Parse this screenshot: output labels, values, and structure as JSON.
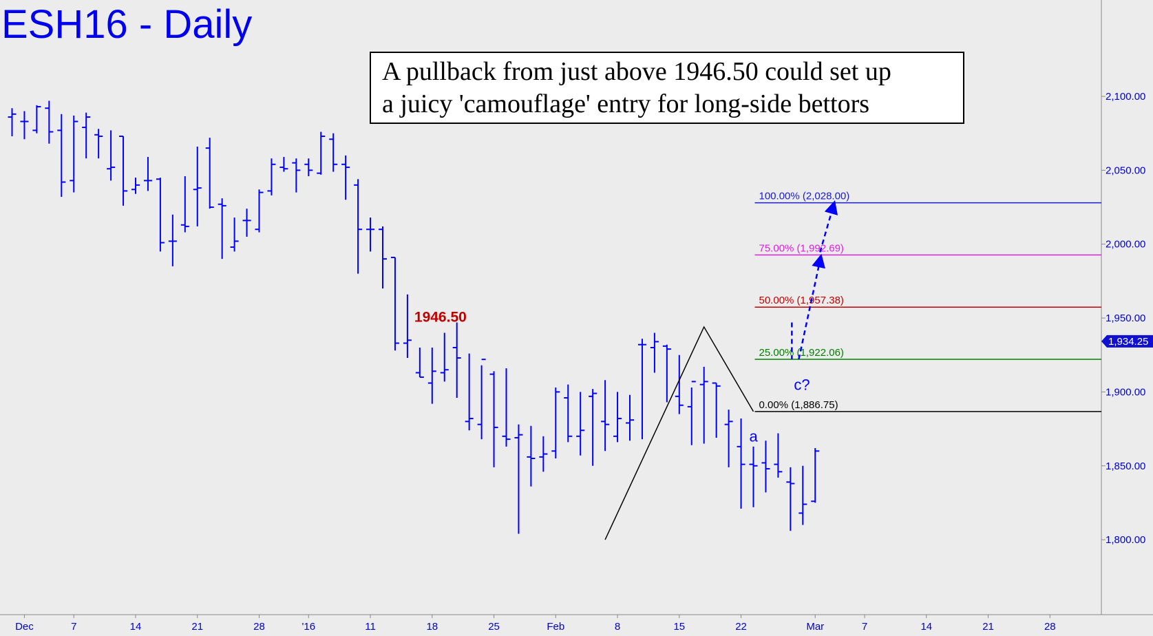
{
  "chart_data": {
    "type": "bar",
    "subtype": "ohlc",
    "title": "ESH16 - Daily",
    "ylim": [
      1755,
      2165
    ],
    "yticks": [
      1800,
      1850,
      1900,
      1950,
      2000,
      2050,
      2100
    ],
    "ytick_labels": [
      "1,800.00",
      "1,850.00",
      "1,900.00",
      "1,950.00",
      "2,000.00",
      "2,050.00",
      "2,100.00"
    ],
    "x_labels": [
      {
        "label": "Dec",
        "day": 1
      },
      {
        "label": "7",
        "day": 5
      },
      {
        "label": "14",
        "day": 10
      },
      {
        "label": "21",
        "day": 15
      },
      {
        "label": "28",
        "day": 20
      },
      {
        "label": "'16",
        "day": 24
      },
      {
        "label": "11",
        "day": 29
      },
      {
        "label": "18",
        "day": 34
      },
      {
        "label": "25",
        "day": 39
      },
      {
        "label": "Feb",
        "day": 44
      },
      {
        "label": "8",
        "day": 49
      },
      {
        "label": "15",
        "day": 54
      },
      {
        "label": "22",
        "day": 59
      },
      {
        "label": "Mar",
        "day": 65
      },
      {
        "label": "7",
        "day": 69
      },
      {
        "label": "14",
        "day": 74
      },
      {
        "label": "21",
        "day": 79
      },
      {
        "label": "28",
        "day": 84
      }
    ],
    "last_price": 1934.25,
    "last_price_label": "1,934.25",
    "bars": [
      {
        "day": 0,
        "o": 2086,
        "h": 2092,
        "l": 2073,
        "c": 2088
      },
      {
        "day": 1,
        "o": 2083,
        "h": 2090,
        "l": 2071,
        "c": 2083
      },
      {
        "day": 2,
        "o": 2077,
        "h": 2094,
        "l": 2075,
        "c": 2093
      },
      {
        "day": 3,
        "o": 2092,
        "h": 2097,
        "l": 2068,
        "c": 2076
      },
      {
        "day": 4,
        "o": 2077,
        "h": 2088,
        "l": 2032,
        "c": 2042
      },
      {
        "day": 5,
        "o": 2043,
        "h": 2087,
        "l": 2035,
        "c": 2083
      },
      {
        "day": 6,
        "o": 2079,
        "h": 2089,
        "l": 2058,
        "c": 2086
      },
      {
        "day": 7,
        "o": 2074,
        "h": 2078,
        "l": 2058,
        "c": 2073
      },
      {
        "day": 8,
        "o": 2051,
        "h": 2077,
        "l": 2043,
        "c": 2052
      },
      {
        "day": 9,
        "o": 2073,
        "h": 2073,
        "l": 2026,
        "c": 2036
      },
      {
        "day": 10,
        "o": 2037,
        "h": 2045,
        "l": 2034,
        "c": 2040
      },
      {
        "day": 11,
        "o": 2043,
        "h": 2059,
        "l": 2036,
        "c": 2043
      },
      {
        "day": 12,
        "o": 2044,
        "h": 2045,
        "l": 1995,
        "c": 2001
      },
      {
        "day": 13,
        "o": 2002,
        "h": 2020,
        "l": 1985,
        "c": 2002
      },
      {
        "day": 14,
        "o": 2013,
        "h": 2046,
        "l": 2008,
        "c": 2012
      },
      {
        "day": 15,
        "o": 2037,
        "h": 2066,
        "l": 2012,
        "c": 2038
      },
      {
        "day": 16,
        "o": 2065,
        "h": 2072,
        "l": 2024,
        "c": 2025
      },
      {
        "day": 17,
        "o": 2027,
        "h": 2031,
        "l": 1990,
        "c": 2026
      },
      {
        "day": 18,
        "o": 1998,
        "h": 2018,
        "l": 1995,
        "c": 2002
      },
      {
        "day": 19,
        "o": 2016,
        "h": 2024,
        "l": 2005,
        "c": 2016
      },
      {
        "day": 20,
        "o": 2010,
        "h": 2037,
        "l": 2008,
        "c": 2035
      },
      {
        "day": 21,
        "o": 2036,
        "h": 2058,
        "l": 2033,
        "c": 2054
      },
      {
        "day": 22,
        "o": 2052,
        "h": 2059,
        "l": 2049,
        "c": 2051
      },
      {
        "day": 23,
        "o": 2055,
        "h": 2058,
        "l": 2035,
        "c": 2050
      },
      {
        "day": 24,
        "o": 2054,
        "h": 2058,
        "l": 2046,
        "c": 2050
      },
      {
        "day": 25,
        "o": 2048,
        "h": 2076,
        "l": 2047,
        "c": 2073
      },
      {
        "day": 26,
        "o": 2071,
        "h": 2075,
        "l": 2049,
        "c": 2054
      },
      {
        "day": 27,
        "o": 2054,
        "h": 2060,
        "l": 2030,
        "c": 2052
      },
      {
        "day": 28,
        "o": 2040,
        "h": 2044,
        "l": 1980,
        "c": 2010
      },
      {
        "day": 29,
        "o": 2010,
        "h": 2018,
        "l": 1995,
        "c": 2010
      },
      {
        "day": 30,
        "o": 2010,
        "h": 2012,
        "l": 1970,
        "c": 1990
      },
      {
        "day": 31,
        "o": 1991,
        "h": 1991,
        "l": 1928,
        "c": 1933
      },
      {
        "day": 32,
        "o": 1933,
        "h": 1966,
        "l": 1923,
        "c": 1935
      },
      {
        "day": 33,
        "o": 1913,
        "h": 1930,
        "l": 1910,
        "c": 1910
      },
      {
        "day": 34,
        "o": 1906,
        "h": 1930,
        "l": 1892,
        "c": 1914
      },
      {
        "day": 35,
        "o": 1913,
        "h": 1940,
        "l": 1907,
        "c": 1915
      },
      {
        "day": 36,
        "o": 1930,
        "h": 1947,
        "l": 1896,
        "c": 1923
      },
      {
        "day": 37,
        "o": 1880,
        "h": 1926,
        "l": 1874,
        "c": 1882
      },
      {
        "day": 38,
        "o": 1878,
        "h": 1918,
        "l": 1868,
        "c": 1922
      },
      {
        "day": 39,
        "o": 1912,
        "h": 1914,
        "l": 1849,
        "c": 1876
      },
      {
        "day": 40,
        "o": 1870,
        "h": 1916,
        "l": 1863,
        "c": 1868
      },
      {
        "day": 41,
        "o": 1869,
        "h": 1878,
        "l": 1804,
        "c": 1871
      },
      {
        "day": 42,
        "o": 1856,
        "h": 1877,
        "l": 1836,
        "c": 1855
      },
      {
        "day": 43,
        "o": 1856,
        "h": 1870,
        "l": 1846,
        "c": 1858
      },
      {
        "day": 44,
        "o": 1860,
        "h": 1903,
        "l": 1855,
        "c": 1900
      },
      {
        "day": 45,
        "o": 1896,
        "h": 1905,
        "l": 1866,
        "c": 1870
      },
      {
        "day": 46,
        "o": 1870,
        "h": 1900,
        "l": 1857,
        "c": 1874
      },
      {
        "day": 47,
        "o": 1897,
        "h": 1902,
        "l": 1850,
        "c": 1899
      },
      {
        "day": 48,
        "o": 1880,
        "h": 1908,
        "l": 1860,
        "c": 1878
      },
      {
        "day": 49,
        "o": 1870,
        "h": 1900,
        "l": 1866,
        "c": 1882
      },
      {
        "day": 50,
        "o": 1879,
        "h": 1898,
        "l": 1867,
        "c": 1881
      },
      {
        "day": 51,
        "o": 1932,
        "h": 1936,
        "l": 1868,
        "c": 1932
      },
      {
        "day": 52,
        "o": 1930,
        "h": 1940,
        "l": 1913,
        "c": 1934
      },
      {
        "day": 53,
        "o": 1931,
        "h": 1932,
        "l": 1893,
        "c": 1929
      },
      {
        "day": 54,
        "o": 1897,
        "h": 1925,
        "l": 1885,
        "c": 1891
      },
      {
        "day": 55,
        "o": 1890,
        "h": 1903,
        "l": 1864,
        "c": 1907
      },
      {
        "day": 56,
        "o": 1905,
        "h": 1917,
        "l": 1865,
        "c": 1907
      },
      {
        "day": 57,
        "o": 1906,
        "h": 1906,
        "l": 1869,
        "c": 1904
      },
      {
        "day": 58,
        "o": 1878,
        "h": 1888,
        "l": 1849,
        "c": 1880
      },
      {
        "day": 59,
        "o": 1863,
        "h": 1882,
        "l": 1821,
        "c": 1851
      },
      {
        "day": 60,
        "o": 1851,
        "h": 1863,
        "l": 1822,
        "c": 1850
      },
      {
        "day": 61,
        "o": 1852,
        "h": 1867,
        "l": 1832,
        "c": 1848
      },
      {
        "day": 62,
        "o": 1851,
        "h": 1872,
        "l": 1842,
        "c": 1846
      },
      {
        "day": 63,
        "o": 1839,
        "h": 1849,
        "l": 1806,
        "c": 1838
      },
      {
        "day": 64,
        "o": 1818,
        "h": 1850,
        "l": 1810,
        "c": 1824
      },
      {
        "day": 65,
        "o": 1826,
        "h": 1862,
        "l": 1825,
        "c": 1860
      }
    ]
  },
  "annotation": {
    "line1": "A pullback from just above 1946.50 could set up",
    "line2": "a juicy 'camouflage' entry for long-side bettors"
  },
  "key_level": {
    "value": 1946.5,
    "label": "1946.50",
    "color": "#c00000"
  },
  "fib_levels": [
    {
      "pct": "100.00%",
      "value": 2028.0,
      "label": "100.00% (2,028.00)",
      "color": "#1a1ad0"
    },
    {
      "pct": "75.00%",
      "value": 1992.69,
      "label": "75.00% (1,992.69)",
      "color": "#e020e0"
    },
    {
      "pct": "50.00%",
      "value": 1957.38,
      "label": "50.00% (1,957.38)",
      "color": "#c00000"
    },
    {
      "pct": "25.00%",
      "value": 1922.06,
      "label": "25.00% (1,922.06)",
      "color": "#008000"
    },
    {
      "pct": "0.00%",
      "value": 1886.75,
      "label": "0.00% (1,886.75)",
      "color": "#000000"
    }
  ],
  "wave_labels": {
    "a": "a",
    "c": "c?"
  },
  "colors": {
    "bars": "#0000ff",
    "axis_text": "#0000cc",
    "background": "#ececec"
  }
}
